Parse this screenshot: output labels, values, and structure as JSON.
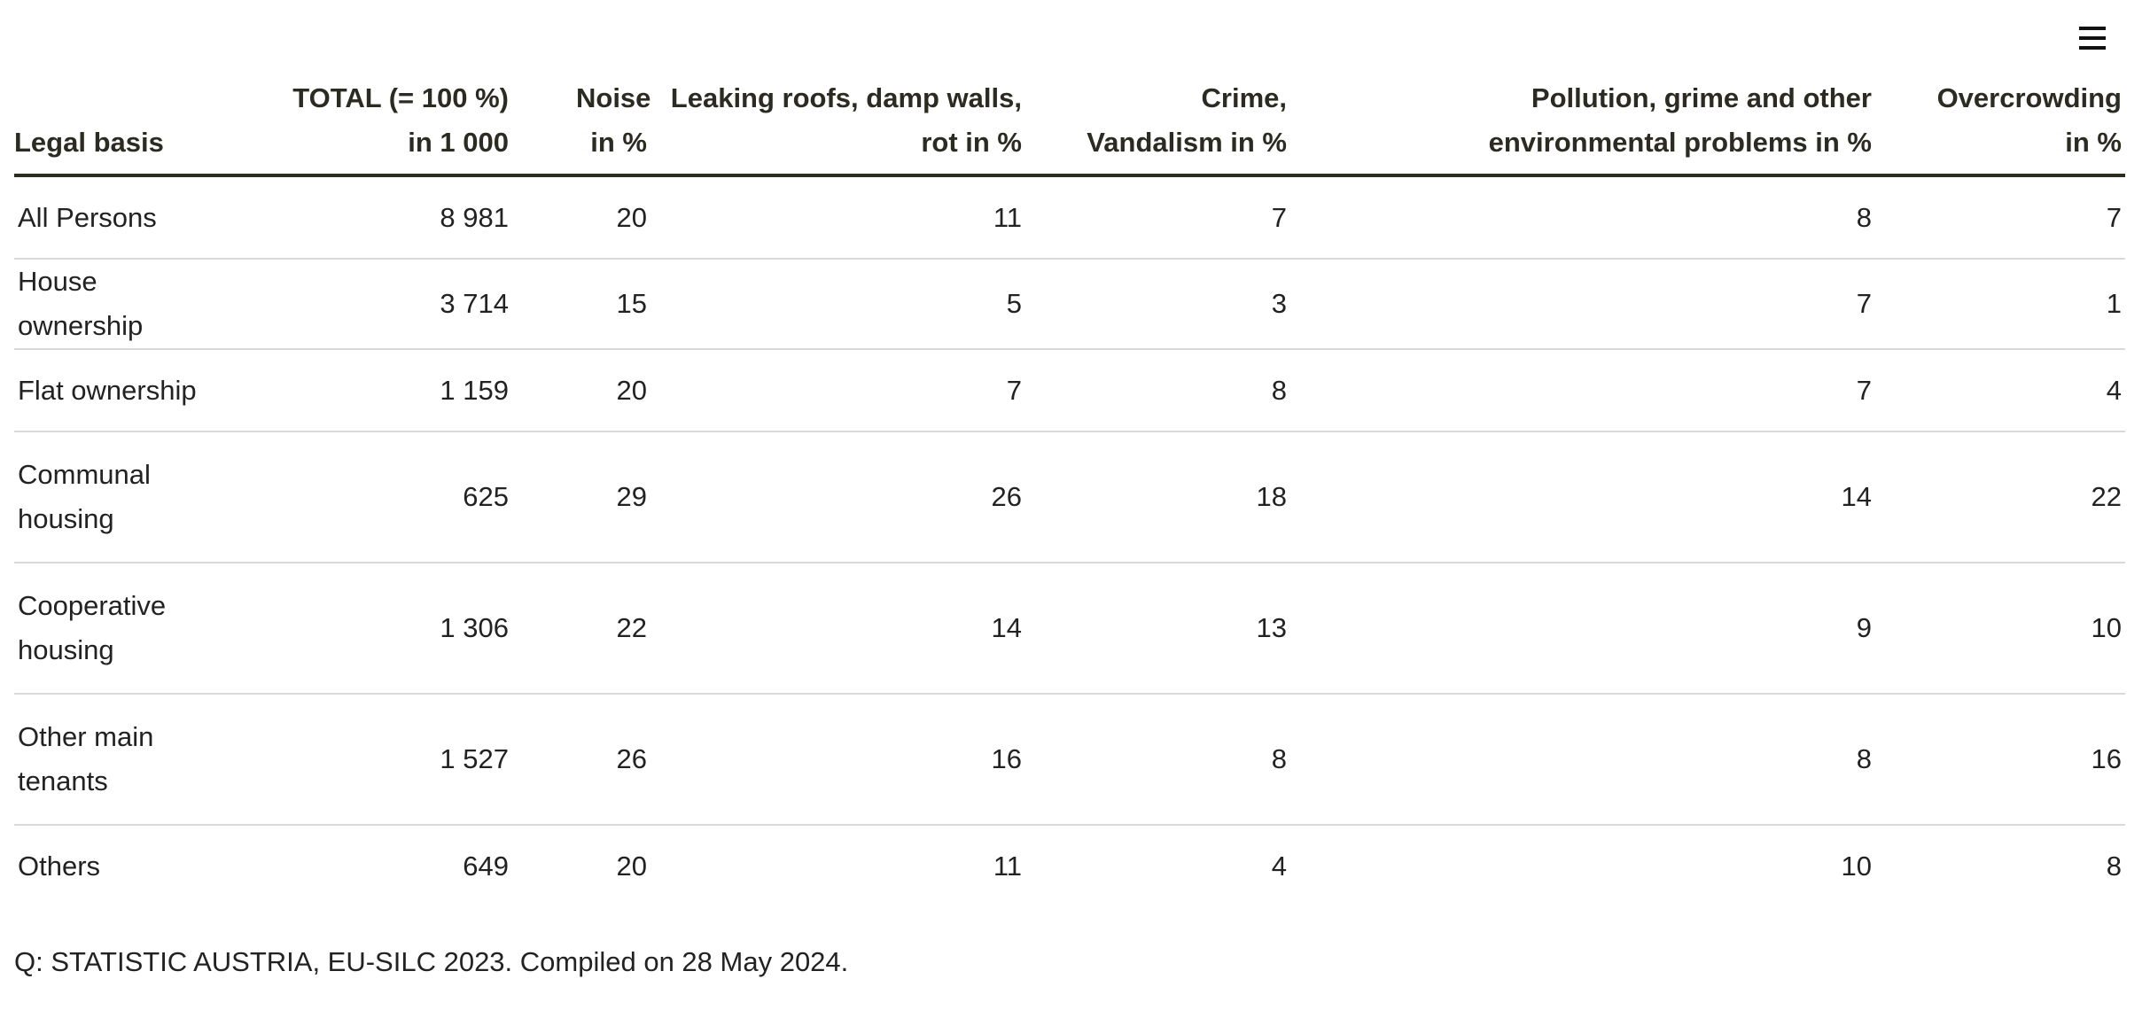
{
  "menu": {
    "icon": "hamburger-menu-icon"
  },
  "chart_data": {
    "type": "table",
    "columns": [
      "Legal basis",
      "TOTAL (= 100 %) in 1 000",
      "Noise in %",
      "Leaking roofs, damp walls, rot in %",
      "Crime, Vandalism in %",
      "Pollution, grime and other environmental problems in %",
      "Overcrowding in %"
    ],
    "rows": [
      [
        "All Persons",
        "8 981",
        "20",
        "11",
        "7",
        "8",
        "7"
      ],
      [
        "House ownership",
        "3 714",
        "15",
        "5",
        "3",
        "7",
        "1"
      ],
      [
        "Flat ownership",
        "1 159",
        "20",
        "7",
        "8",
        "7",
        "4"
      ],
      [
        "Communal housing",
        "625",
        "29",
        "26",
        "18",
        "14",
        "22"
      ],
      [
        "Cooperative housing",
        "1 306",
        "22",
        "14",
        "13",
        "9",
        "10"
      ],
      [
        "Other main tenants",
        "1 527",
        "26",
        "16",
        "8",
        "8",
        "16"
      ],
      [
        "Others",
        "649",
        "20",
        "11",
        "4",
        "10",
        "8"
      ]
    ]
  },
  "source": "Q: STATISTIC AUSTRIA, EU-SILC 2023. Compiled on 28 May 2024."
}
